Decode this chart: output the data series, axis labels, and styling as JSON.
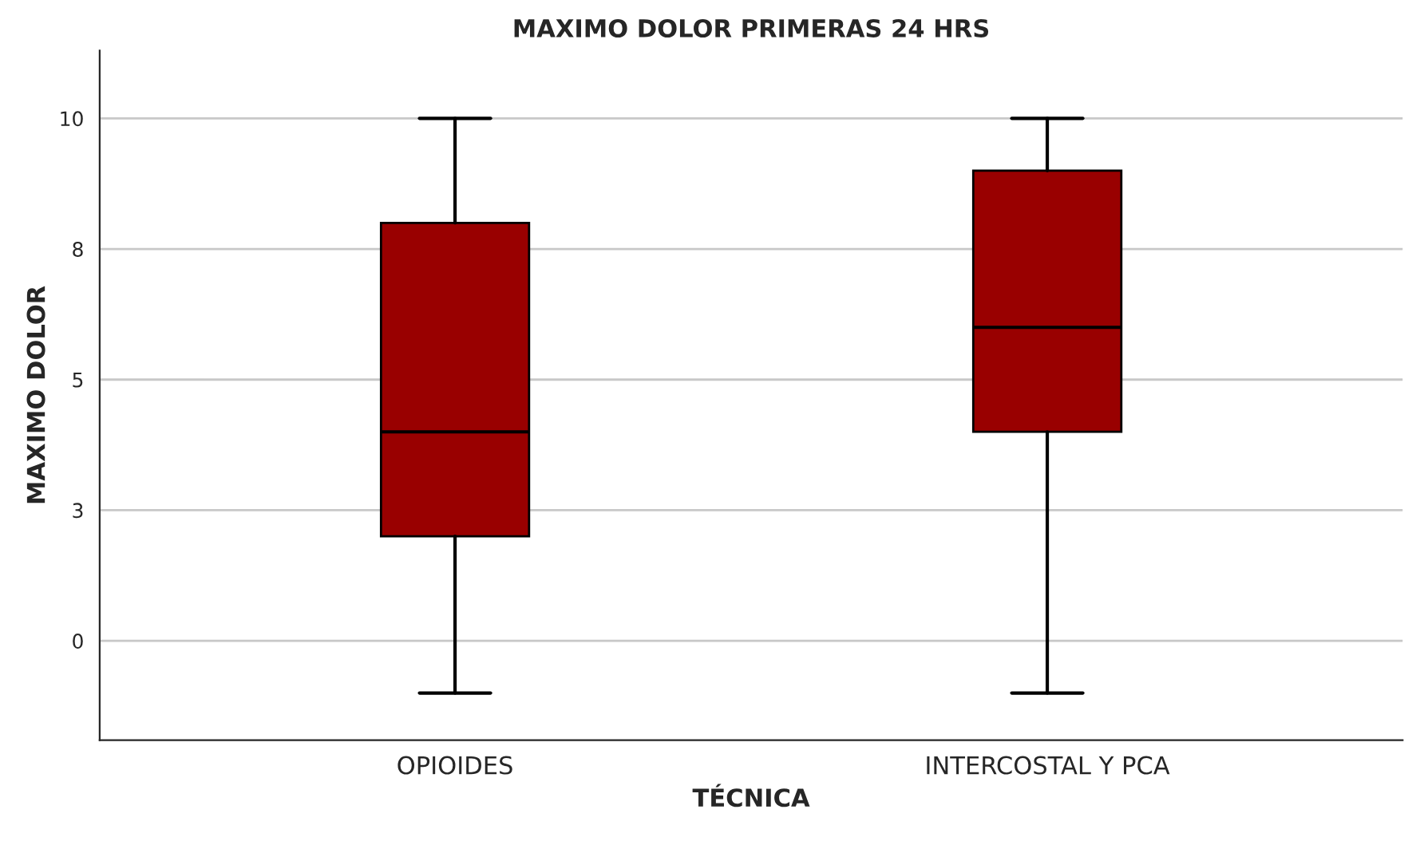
{
  "chart_data": {
    "type": "box",
    "title": "MAXIMO DOLOR PRIMERAS 24 HRS",
    "xlabel": "TÉCNICA",
    "ylabel": "MAXIMO DOLOR",
    "categories": [
      "OPIOIDES",
      "INTERCOSTAL Y PCA"
    ],
    "color": "#990000",
    "boxes": [
      {
        "low": -1,
        "q1": 2,
        "median": 4,
        "q3": 8,
        "high": 10
      },
      {
        "low": -1,
        "q1": 4,
        "median": 6,
        "q3": 9,
        "high": 10
      }
    ],
    "ylim": [
      -1.9,
      11.3
    ],
    "yticks": [
      0,
      {
        "value": 2.5,
        "label": "3"
      },
      5,
      {
        "value": 7.5,
        "label": "8"
      },
      10
    ],
    "grid": "y",
    "legend": false
  }
}
